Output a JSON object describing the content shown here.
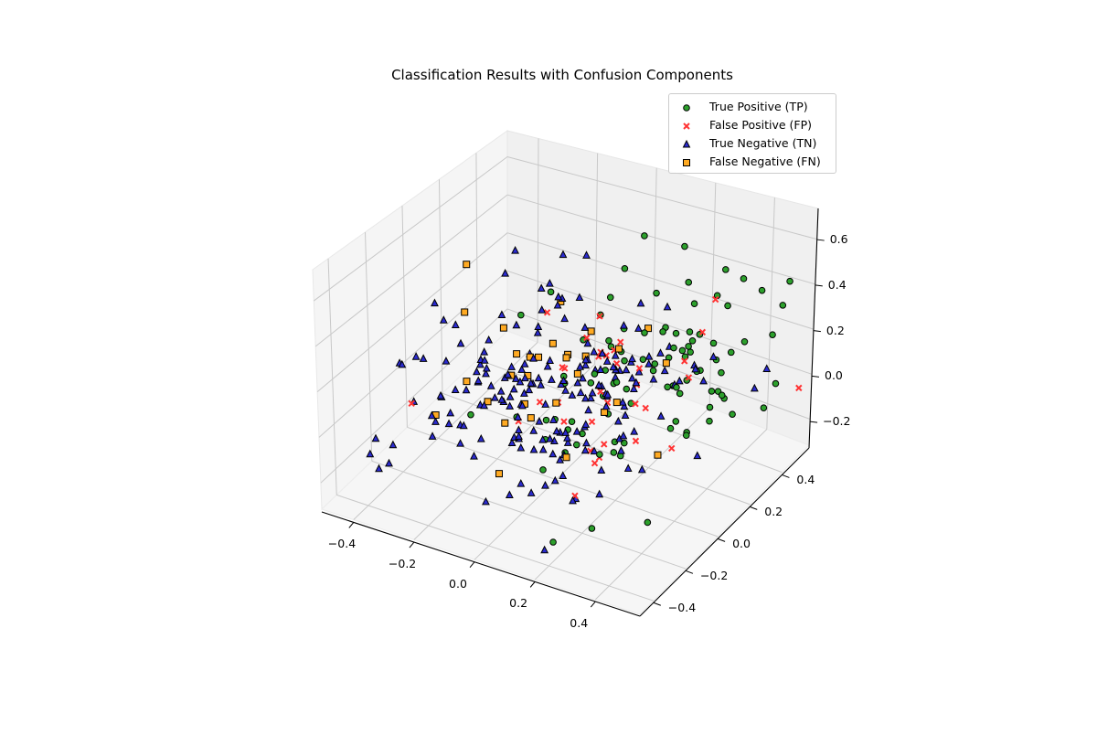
{
  "chart_data": {
    "type": "scatter",
    "projection": "3d",
    "title": "Classification Results with Confusion Components",
    "xlabel": "",
    "ylabel": "",
    "zlabel": "",
    "xlim": [
      -0.5,
      0.55
    ],
    "ylim": [
      -0.45,
      0.5
    ],
    "zlim": [
      -0.3,
      0.7
    ],
    "x_ticks": [
      "-0.4",
      "-0.2",
      "0.0",
      "0.2",
      "0.4"
    ],
    "y_ticks": [
      "-0.4",
      "-0.2",
      "0.0",
      "0.2",
      "0.4"
    ],
    "z_ticks": [
      "-0.2",
      "0.0",
      "0.2",
      "0.4",
      "0.6"
    ],
    "grid": true,
    "legend_position": "upper right",
    "series": [
      {
        "name": "True Positive (TP)",
        "marker": "circle",
        "color": "#2ca02c",
        "approx_count": 95,
        "region": "high x, upper-right and top of volume"
      },
      {
        "name": "False Positive (FP)",
        "marker": "x",
        "color": "#ff3333",
        "approx_count": 35,
        "region": "scattered, mid volume"
      },
      {
        "name": "True Negative (TN)",
        "marker": "triangle",
        "color": "#2b2bd0",
        "approx_count": 200,
        "region": "low z, dense cluster center-left"
      },
      {
        "name": "False Negative (FN)",
        "marker": "square",
        "color": "#ffaa22",
        "approx_count": 30,
        "region": "scattered, mid volume"
      }
    ]
  },
  "legend": {
    "items": [
      {
        "label": "True Positive (TP)",
        "icon": "circle-marker-icon",
        "color": "#2ca02c"
      },
      {
        "label": "False Positive (FP)",
        "icon": "x-marker-icon",
        "color": "#ff3333"
      },
      {
        "label": "True Negative (TN)",
        "icon": "triangle-marker-icon",
        "color": "#2b2bd0"
      },
      {
        "label": "False Negative (FN)",
        "icon": "square-marker-icon",
        "color": "#ffaa22"
      }
    ]
  },
  "axes": {
    "x_tick_labels": [
      "−0.4",
      "−0.2",
      "0.0",
      "0.2",
      "0.4"
    ],
    "y_tick_labels": [
      "−0.4",
      "−0.2",
      "0.0",
      "0.2",
      "0.4"
    ],
    "z_tick_labels": [
      "−0.2",
      "0.0",
      "0.2",
      "0.4",
      "0.6"
    ]
  }
}
